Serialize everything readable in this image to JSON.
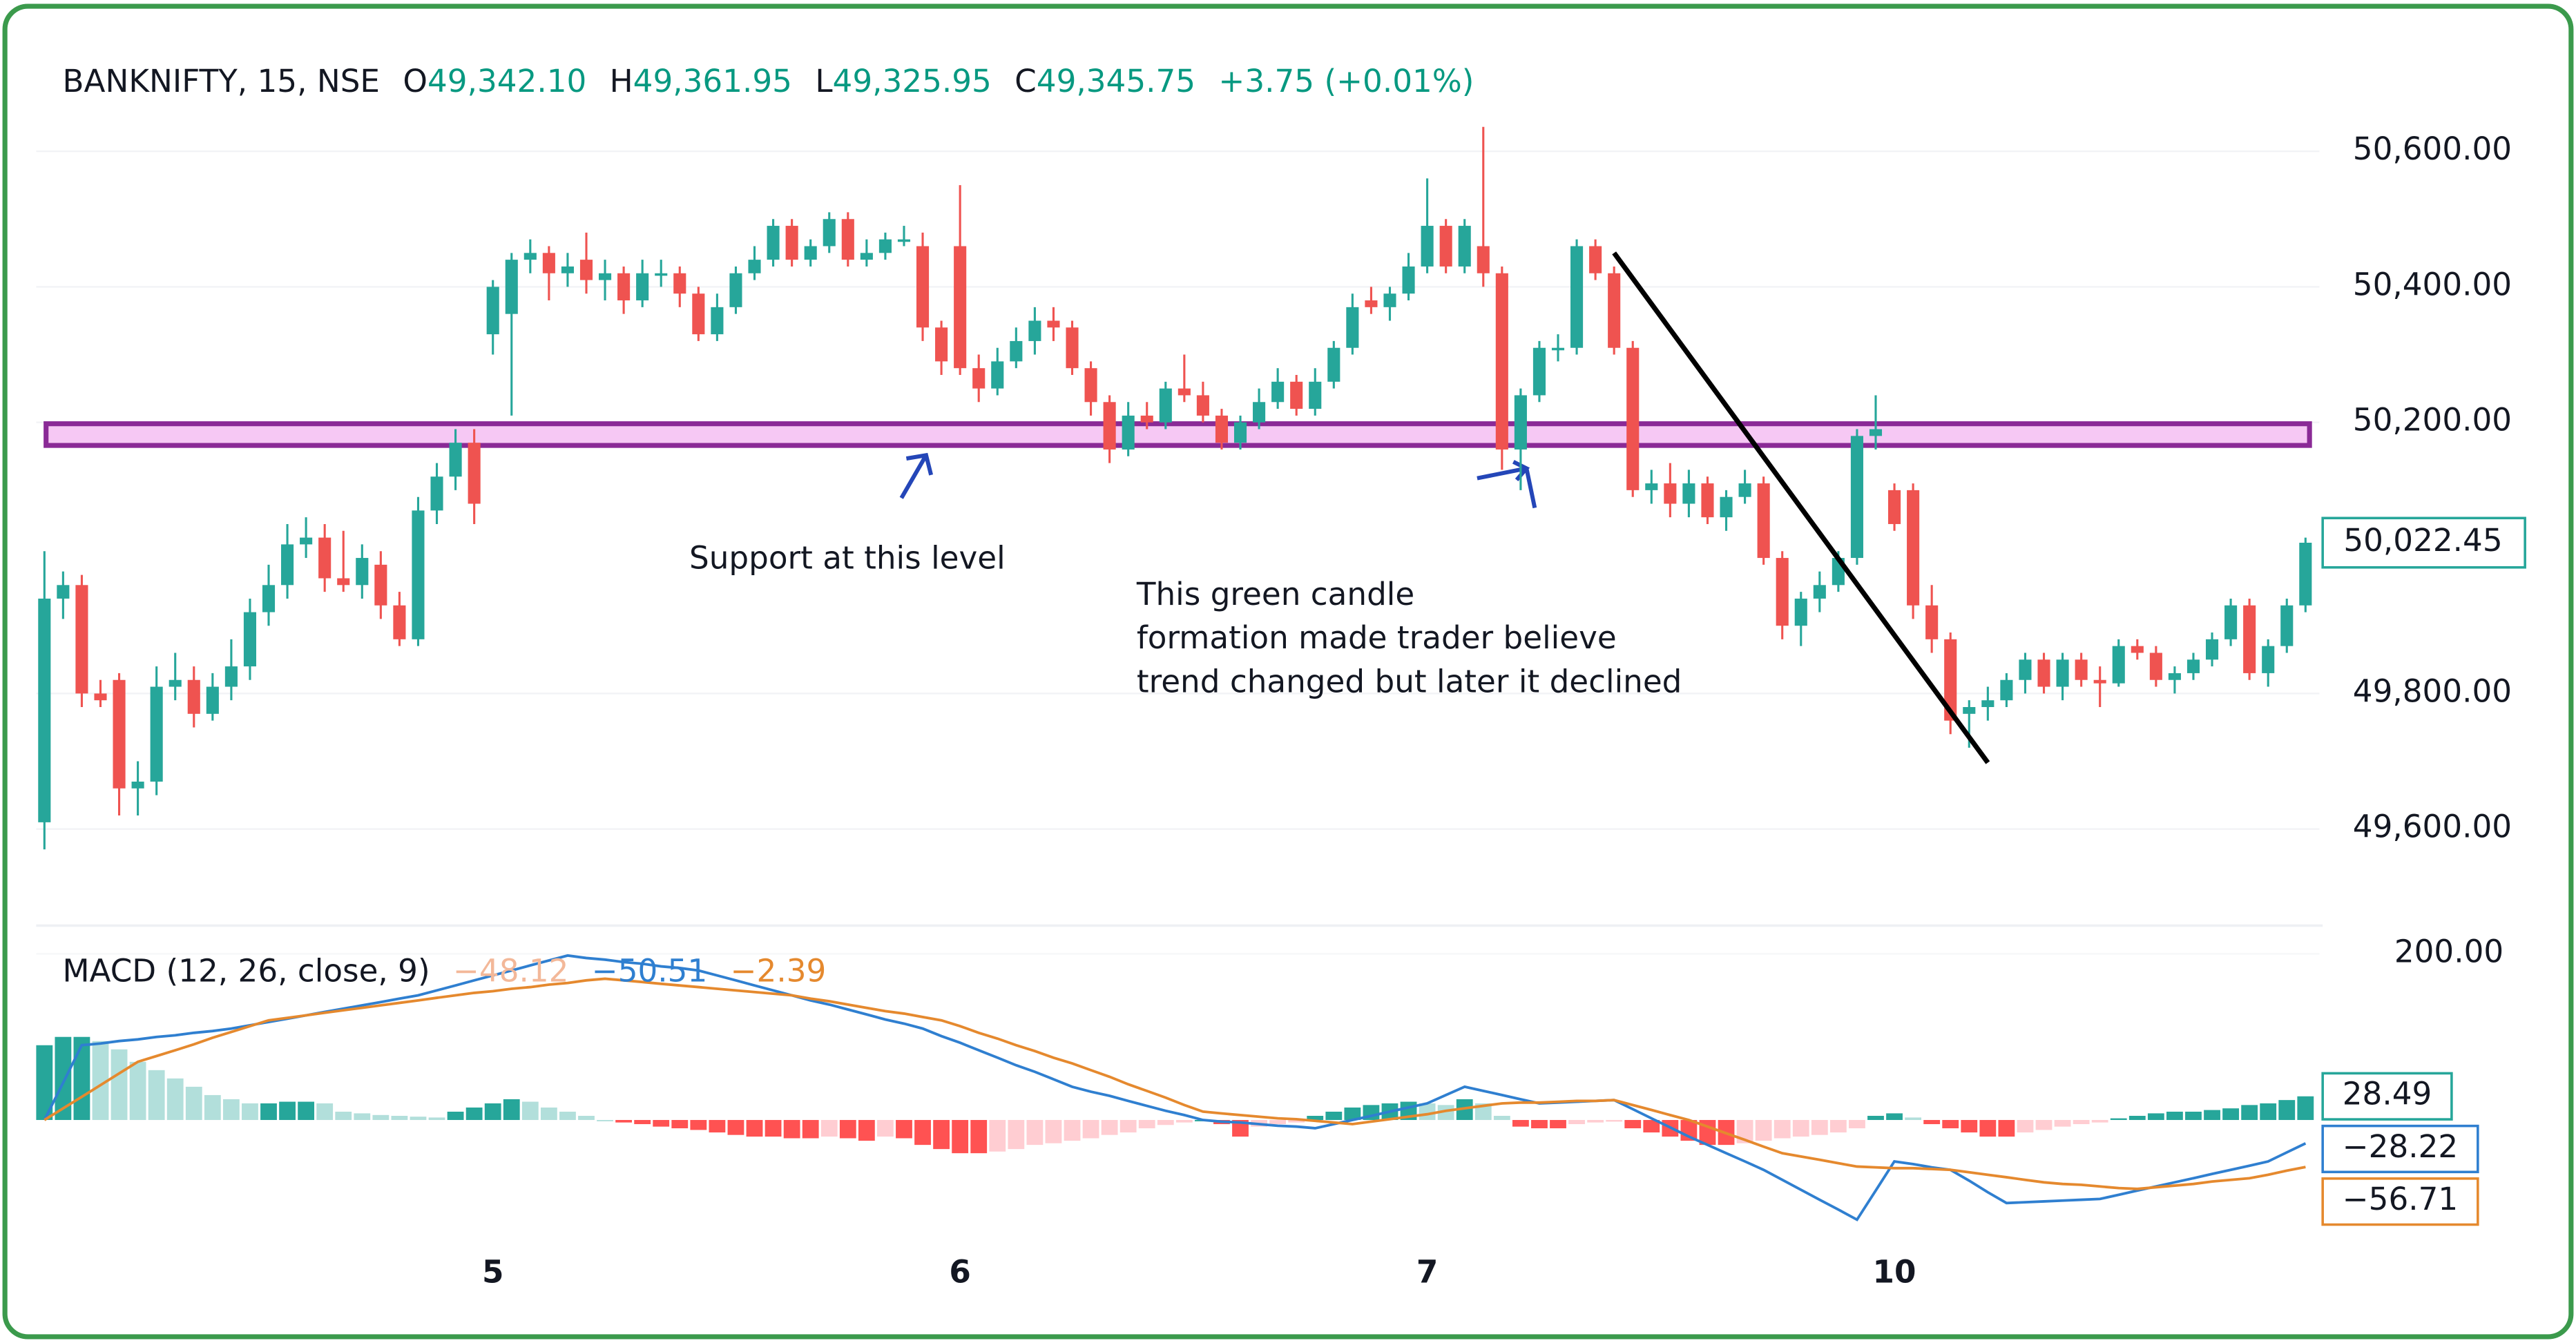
{
  "chart_data": [
    {
      "type": "candlestick",
      "title": "BANKNIFTY, 15, NSE",
      "ohlc_legend": [
        {
          "key": "O",
          "value": "49,342.10"
        },
        {
          "key": "H",
          "value": "49,361.95"
        },
        {
          "key": "L",
          "value": "49,325.95"
        },
        {
          "key": "C",
          "value": "49,345.75"
        }
      ],
      "change": "+3.75 (+0.01%)",
      "up_color": "#26a69a",
      "down_color": "#ef5350",
      "ylim": [
        49460,
        50780
      ],
      "yticks": [
        {
          "value": 49600,
          "label": "49,600.00"
        },
        {
          "value": 49800,
          "label": "49,800.00"
        },
        {
          "value": 50200,
          "label": "50,200.00"
        },
        {
          "value": 50400,
          "label": "50,400.00"
        },
        {
          "value": 50600,
          "label": "50,600.00"
        }
      ],
      "grid": true,
      "last_label": "50,022.45",
      "categories": [
        null,
        null,
        null,
        null,
        null,
        null,
        null,
        null,
        null,
        null,
        null,
        null,
        null,
        null,
        null,
        null,
        null,
        null,
        null,
        null,
        null,
        null,
        null,
        null,
        "5",
        null,
        null,
        null,
        null,
        null,
        null,
        null,
        null,
        null,
        null,
        null,
        null,
        null,
        null,
        null,
        null,
        null,
        null,
        null,
        null,
        null,
        null,
        null,
        null,
        "6",
        null,
        null,
        null,
        null,
        null,
        null,
        null,
        null,
        null,
        null,
        null,
        null,
        null,
        null,
        null,
        null,
        null,
        null,
        null,
        null,
        null,
        null,
        null,
        null,
        "7",
        null,
        null,
        null,
        null,
        null,
        null,
        null,
        null,
        null,
        null,
        null,
        null,
        null,
        null,
        null,
        null,
        null,
        null,
        null,
        null,
        null,
        null,
        null,
        null,
        "10",
        null,
        null,
        null,
        null,
        null,
        null,
        null,
        null,
        null,
        null,
        null,
        null,
        null,
        null,
        null,
        null,
        null,
        null,
        null,
        null,
        null,
        null
      ],
      "open": [
        49610,
        49940,
        49960,
        49800,
        49820,
        49660,
        49670,
        49810,
        49820,
        49770,
        49810,
        49840,
        49920,
        49960,
        50020,
        50030,
        49970,
        49960,
        49990,
        49930,
        49880,
        50070,
        50120,
        50170,
        50330,
        50360,
        50440,
        50450,
        50420,
        50440,
        50410,
        50420,
        50380,
        50420,
        50420,
        50390,
        50330,
        50370,
        50420,
        50440,
        50490,
        50440,
        50460,
        50500,
        50440,
        50450,
        50470,
        50460,
        50340,
        50460,
        50280,
        50250,
        50290,
        50320,
        50350,
        50340,
        50280,
        50230,
        50160,
        50210,
        50200,
        50250,
        50240,
        50210,
        50170,
        50200,
        50230,
        50260,
        50220,
        50260,
        50310,
        50380,
        50370,
        50390,
        50430,
        50490,
        50430,
        50460,
        50420,
        50160,
        50240,
        50310,
        50310,
        50460,
        50420,
        50310,
        50100,
        50110,
        50080,
        50110,
        50060,
        50090,
        50110,
        50000,
        49900,
        49940,
        49960,
        50000,
        50180,
        50100,
        50100,
        49930,
        49880,
        49770,
        49780,
        49790,
        49820,
        49850,
        49810,
        49850,
        49820,
        49815,
        49870,
        49860,
        49820,
        49830,
        49850,
        49880,
        49930,
        49830,
        49870,
        49930
      ],
      "high": [
        50010,
        49980,
        49975,
        49820,
        49830,
        49700,
        49840,
        49860,
        49840,
        49830,
        49880,
        49940,
        49990,
        50050,
        50060,
        50050,
        50040,
        50020,
        50010,
        49950,
        50090,
        50140,
        50190,
        50190,
        50410,
        50450,
        50470,
        50460,
        50450,
        50480,
        50440,
        50430,
        50440,
        50440,
        50430,
        50400,
        50390,
        50430,
        50460,
        50500,
        50500,
        50470,
        50510,
        50510,
        50470,
        50480,
        50490,
        50480,
        50350,
        50550,
        50300,
        50310,
        50340,
        50370,
        50370,
        50350,
        50290,
        50240,
        50230,
        50230,
        50260,
        50300,
        50260,
        50220,
        50210,
        50250,
        50280,
        50270,
        50280,
        50320,
        50390,
        50400,
        50400,
        50450,
        50560,
        50500,
        50500,
        50636,
        50430,
        50250,
        50320,
        50330,
        50470,
        50470,
        50430,
        50320,
        50130,
        50140,
        50130,
        50120,
        50100,
        50130,
        50120,
        50010,
        49950,
        49980,
        50010,
        50190,
        50240,
        50110,
        50110,
        49960,
        49890,
        49790,
        49810,
        49830,
        49860,
        49860,
        49860,
        49860,
        49840,
        49880,
        49880,
        49870,
        49840,
        49860,
        49890,
        49940,
        49940,
        49880,
        49940,
        50030
      ],
      "low": [
        49570,
        49910,
        49780,
        49780,
        49620,
        49620,
        49650,
        49790,
        49750,
        49760,
        49790,
        49820,
        49900,
        49940,
        50000,
        49950,
        49950,
        49940,
        49910,
        49870,
        49870,
        50050,
        50100,
        50050,
        50300,
        50210,
        50420,
        50380,
        50400,
        50390,
        50380,
        50360,
        50370,
        50400,
        50370,
        50320,
        50320,
        50360,
        50410,
        50430,
        50430,
        50430,
        50450,
        50430,
        50430,
        50440,
        50460,
        50320,
        50270,
        50270,
        50230,
        50240,
        50280,
        50300,
        50320,
        50270,
        50210,
        50140,
        50150,
        50190,
        50190,
        50230,
        50200,
        50160,
        50160,
        50190,
        50220,
        50210,
        50210,
        50250,
        50300,
        50360,
        50350,
        50380,
        50420,
        50420,
        50420,
        50400,
        50130,
        50100,
        50230,
        50290,
        50300,
        50410,
        50300,
        50090,
        50080,
        50060,
        50060,
        50050,
        50040,
        50080,
        49990,
        49880,
        49870,
        49920,
        49950,
        49990,
        50160,
        50040,
        49910,
        49860,
        49740,
        49720,
        49760,
        49780,
        49800,
        49800,
        49790,
        49810,
        49780,
        49810,
        49850,
        49810,
        49800,
        49820,
        49840,
        49870,
        49820,
        49810,
        49860,
        49920
      ],
      "close": [
        49940,
        49960,
        49800,
        49790,
        49660,
        49670,
        49810,
        49820,
        49770,
        49810,
        49840,
        49920,
        49960,
        50020,
        50030,
        49970,
        49960,
        50000,
        49930,
        49880,
        50070,
        50120,
        50170,
        50080,
        50400,
        50440,
        50450,
        50420,
        50430,
        50410,
        50420,
        50380,
        50420,
        50420,
        50390,
        50330,
        50370,
        50420,
        50440,
        50490,
        50440,
        50460,
        50500,
        50440,
        50450,
        50470,
        50470,
        50340,
        50290,
        50280,
        50250,
        50290,
        50320,
        50350,
        50340,
        50280,
        50230,
        50160,
        50210,
        50200,
        50250,
        50240,
        50210,
        50170,
        50200,
        50230,
        50260,
        50220,
        50260,
        50310,
        50370,
        50370,
        50390,
        50430,
        50490,
        50430,
        50490,
        50420,
        50160,
        50240,
        50310,
        50310,
        50460,
        50420,
        50310,
        50100,
        50110,
        50080,
        50110,
        50060,
        50090,
        50110,
        50000,
        49900,
        49940,
        49960,
        50000,
        50180,
        50190,
        50050,
        49930,
        49880,
        49760,
        49780,
        49790,
        49820,
        49850,
        49810,
        49850,
        49820,
        49815,
        49870,
        49860,
        49820,
        49830,
        49850,
        49880,
        49930,
        49830,
        49870,
        49930,
        50022.45
      ],
      "support_zone": {
        "low": 50166,
        "high": 50198,
        "fill": "#f6c8f4",
        "color": "#8a2a96"
      },
      "trendline": {
        "x": [
          84,
          104
        ],
        "values": [
          50450,
          49698
        ],
        "color": "#000000"
      },
      "annotations": [
        {
          "lines": [
            "Support at this level"
          ]
        },
        {
          "lines": [
            "This green candle",
            "formation made trader believe",
            "trend changed but later it declined"
          ]
        }
      ]
    },
    {
      "type": "macd",
      "title": "MACD (12, 26, close, 9)",
      "legend_values": [
        "−48.12",
        "−50.51",
        "−2.39"
      ],
      "ylim": [
        -158,
        234
      ],
      "yticks": [
        {
          "value": 200,
          "label": "200.00"
        }
      ],
      "histogram": {
        "colors": [
          "#26a69a",
          "#b2dfdb",
          "#ff5252",
          "#ffcdd2"
        ],
        "values": [
          90,
          100,
          100,
          95,
          85,
          70,
          60,
          50,
          40,
          30,
          25,
          20,
          20,
          22,
          22,
          20,
          10,
          8,
          6,
          5,
          4,
          3,
          10,
          15,
          20,
          25,
          22,
          15,
          10,
          5,
          0,
          -3,
          -5,
          -8,
          -10,
          -12,
          -15,
          -18,
          -20,
          -20,
          -22,
          -22,
          -20,
          -22,
          -25,
          -20,
          -22,
          -30,
          -35,
          -40,
          -40,
          -38,
          -35,
          -30,
          -28,
          -25,
          -22,
          -18,
          -15,
          -10,
          -6,
          -3,
          0,
          -5,
          -20,
          -8,
          -5,
          -3,
          5,
          10,
          15,
          18,
          20,
          22,
          20,
          18,
          25,
          20,
          5,
          -8,
          -10,
          -10,
          -5,
          -3,
          -2,
          -10,
          -15,
          -20,
          -25,
          -30,
          -30,
          -28,
          -25,
          -22,
          -20,
          -18,
          -15,
          -10,
          5,
          8,
          3,
          -5,
          -10,
          -15,
          -20,
          -20,
          -15,
          -12,
          -8,
          -5,
          -3,
          2,
          5,
          8,
          10,
          10,
          12,
          14,
          18,
          20,
          24,
          28.49
        ],
        "last_label": "28.49"
      },
      "lines": [
        {
          "color": "#2f7fd0",
          "last_label": "−28.22",
          "values": [
            0,
            45,
            90,
            92,
            95,
            97,
            100,
            102,
            105,
            107,
            110,
            114,
            118,
            122,
            126,
            130,
            134,
            138,
            142,
            146,
            150,
            156,
            162,
            168,
            174,
            180,
            186,
            192,
            198,
            195,
            193,
            190,
            188,
            185,
            183,
            180,
            174,
            168,
            162,
            156,
            150,
            144,
            139,
            133,
            127,
            121,
            116,
            110,
            101,
            93,
            84,
            75,
            66,
            58,
            49,
            40,
            34,
            29,
            23,
            17,
            11,
            6,
            0,
            -2,
            -3,
            -5,
            -7,
            -8,
            -10,
            -5,
            0,
            5,
            10,
            15,
            20,
            30,
            40,
            35,
            30,
            25,
            20,
            21,
            22,
            23,
            24,
            13,
            2,
            -9,
            -20,
            -30,
            -40,
            -50,
            -60,
            -72,
            -84,
            -96,
            -108,
            -120,
            -85,
            -50,
            -53,
            -57,
            -60,
            -73,
            -87,
            -100,
            -99,
            -98,
            -97,
            -96,
            -95,
            -90,
            -85,
            -80,
            -75,
            -70,
            -65,
            -60,
            -55,
            -50,
            -39,
            -28.22
          ]
        },
        {
          "color": "#e5892e",
          "last_label": "−56.71",
          "values": [
            0,
            14,
            28,
            42,
            56,
            70,
            77,
            84,
            91,
            99,
            106,
            113,
            120,
            123,
            126,
            129,
            132,
            135,
            138,
            141,
            144,
            147,
            150,
            153,
            155,
            158,
            160,
            163,
            165,
            168,
            170,
            168,
            166,
            164,
            162,
            160,
            158,
            156,
            154,
            152,
            150,
            146,
            143,
            139,
            135,
            131,
            128,
            124,
            120,
            113,
            105,
            98,
            90,
            83,
            75,
            68,
            60,
            52,
            43,
            35,
            27,
            18,
            10,
            8,
            6,
            4,
            2,
            1,
            -1,
            -3,
            -5,
            -2,
            1,
            4,
            7,
            11,
            14,
            17,
            20,
            21,
            21,
            22,
            23,
            23,
            24,
            18,
            12,
            6,
            0,
            -8,
            -16,
            -24,
            -32,
            -40,
            -44,
            -48,
            -52,
            -56,
            -57,
            -58,
            -58,
            -59,
            -60,
            -63,
            -66,
            -69,
            -72,
            -75,
            -77,
            -78,
            -80,
            -82,
            -83,
            -81,
            -79,
            -77,
            -74,
            -72,
            -70,
            -66,
            -61,
            -56.71
          ]
        }
      ]
    }
  ]
}
